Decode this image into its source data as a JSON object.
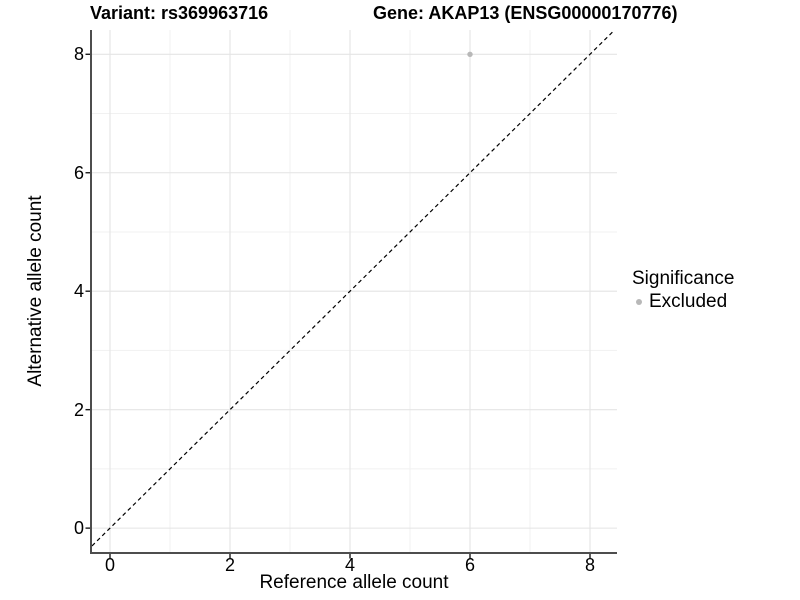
{
  "page": {
    "title_left": "Variant: rs369963716",
    "title_right": "Gene: AKAP13 (ENSG00000170776)"
  },
  "chart_data": {
    "type": "scatter",
    "titles": [
      "Variant: rs369963716",
      "Gene: AKAP13 (ENSG00000170776)"
    ],
    "xlabel": "Reference allele count",
    "ylabel": "Alternative allele count",
    "xlim": [
      -0.3,
      8.45
    ],
    "ylim": [
      -0.42,
      8.41
    ],
    "x_ticks": [
      0,
      2,
      4,
      6,
      8
    ],
    "y_ticks": [
      0,
      2,
      4,
      6,
      8
    ],
    "x_minor_ticks": [
      1,
      3,
      5,
      7
    ],
    "y_minor_ticks": [
      1,
      3,
      5,
      7
    ],
    "grid": true,
    "legend_position": "right",
    "series": [
      {
        "name": "Excluded",
        "color": "#b8b8b8",
        "points": [
          {
            "x": 6,
            "y": 8
          }
        ]
      }
    ],
    "reference_line": {
      "equation": "y = x",
      "style": "dashed",
      "color": "#000000"
    }
  },
  "legend": {
    "title": "Significance",
    "items": [
      {
        "label": "Excluded",
        "color": "#b8b8b8"
      }
    ]
  },
  "colors": {
    "background": "#ffffff",
    "grid_major": "#e4e4e4",
    "grid_minor": "#f1f1f1",
    "axis_line": "#4d4d4d",
    "tick_mark": "#1a1a1a",
    "text": "#000000"
  }
}
